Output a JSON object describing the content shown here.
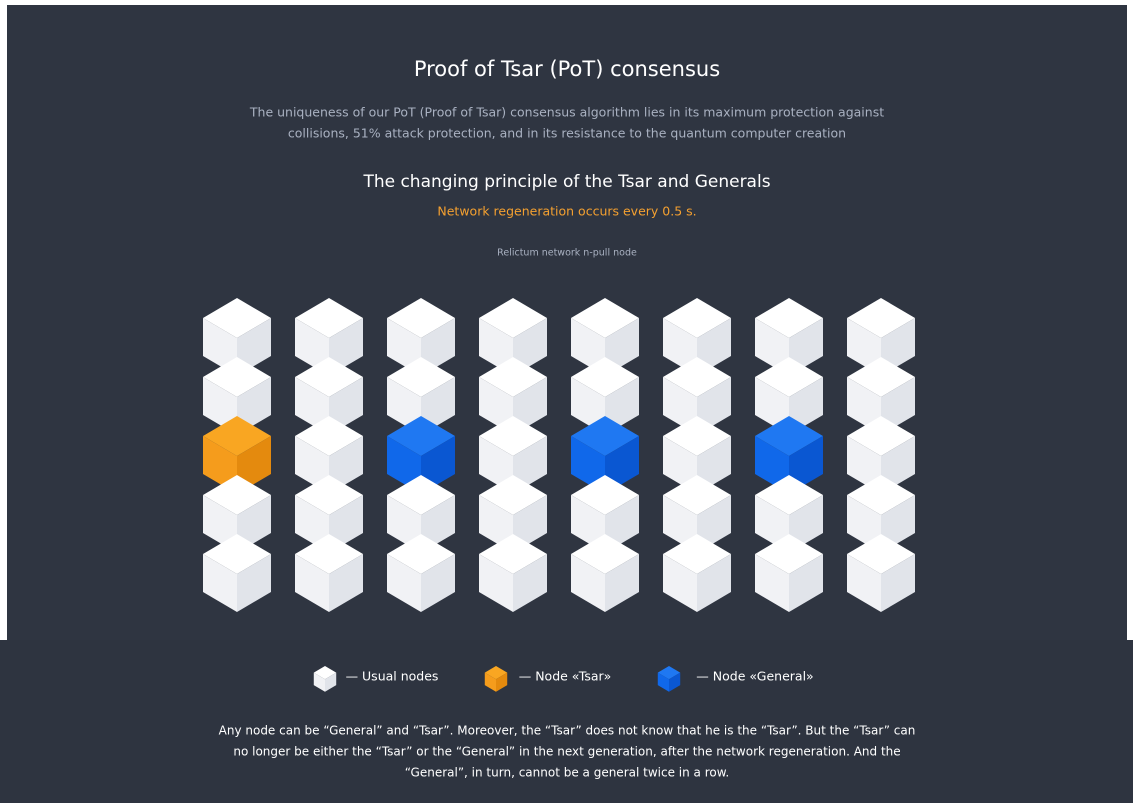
{
  "header": {
    "title": "Proof of Tsar (PoT) consensus",
    "description": [
      "The uniqueness of our PoT (Proof of Tsar) consensus algorithm lies in its maximum protection against",
      "collisions, 51% attack protection, and in its resistance to the quantum computer creation"
    ],
    "subtitle": "The changing principle of the Tsar and Generals",
    "note": "Network regeneration occurs every 0.5 s."
  },
  "grid": {
    "label": "Relictum network n-pull node"
  },
  "legend": [
    "— Usual nodes",
    "— Node «Tsar»",
    "— Node «General»"
  ],
  "footer": [
    "Any node can be “General” and “Tsar”. Moreover, the “Tsar” does not know that he is the “Tsar”. But the “Tsar” can",
    "no longer be either the “Tsar” or the “General” in the next generation, after the network regeneration. And the",
    "“General”, in turn, cannot be a general twice in a row."
  ]
}
